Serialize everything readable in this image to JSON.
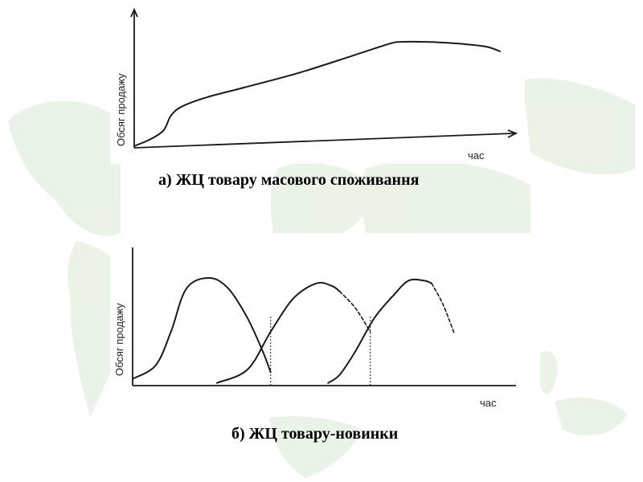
{
  "colors": {
    "map_land": "#d9ead3",
    "curve": "#1a1a1a",
    "background": "#ffffff"
  },
  "captions": {
    "a": "а) ЖЦ товару масового споживання",
    "b": "б) ЖЦ товару-новинки"
  },
  "chart_data": [
    {
      "type": "line",
      "title": "",
      "ylabel": "Обсяг продажу",
      "xlabel": "час",
      "grid": false,
      "series": [
        {
          "x": [
            0,
            4,
            8,
            10,
            13,
            20,
            30,
            45,
            60,
            70,
            73,
            80,
            88,
            96,
            100
          ],
          "y": [
            1,
            4,
            9,
            17,
            22,
            27,
            32,
            40,
            50,
            57,
            58,
            58,
            57,
            55,
            52
          ]
        }
      ]
    },
    {
      "type": "line",
      "title": "",
      "ylabel": "Обсяг продажу",
      "xlabel": "час",
      "grid": false,
      "series": [
        {
          "x": [
            0,
            6,
            10,
            14,
            20,
            25,
            30,
            34,
            36
          ],
          "y": [
            5,
            15,
            40,
            72,
            80,
            72,
            50,
            25,
            10
          ],
          "style": "solid"
        },
        {
          "x": [
            22,
            30,
            36,
            42,
            48,
            52,
            54
          ],
          "y": [
            2,
            12,
            40,
            65,
            76,
            74,
            70
          ],
          "style": "solid"
        },
        {
          "x": [
            54,
            58,
            62
          ],
          "y": [
            70,
            58,
            40
          ],
          "style": "dashed"
        },
        {
          "x": [
            51,
            54,
            58,
            63,
            68,
            72,
            76,
            78
          ],
          "y": [
            2,
            8,
            25,
            50,
            67,
            78,
            78,
            76
          ],
          "style": "solid"
        },
        {
          "x": [
            78,
            81,
            84
          ],
          "y": [
            76,
            60,
            38
          ],
          "style": "dashed"
        }
      ],
      "vlines": [
        36,
        62
      ]
    }
  ]
}
